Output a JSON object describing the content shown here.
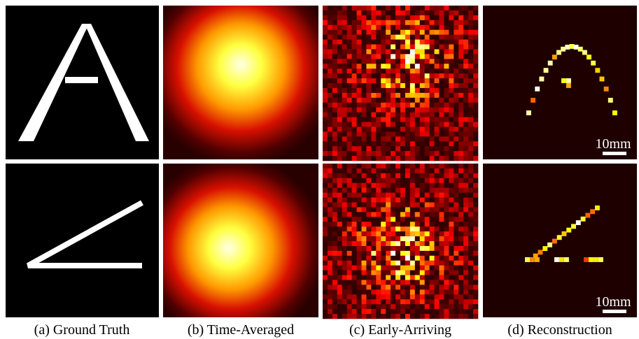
{
  "panels": [
    {
      "caption": "(a) Ground Truth"
    },
    {
      "caption": "(b) Time-Averaged"
    },
    {
      "caption": "(c) Early-Arriving"
    },
    {
      "caption": "(d) Reconstruction"
    }
  ],
  "scale_bars": [
    {
      "label": "10mm"
    },
    {
      "label": "10mm"
    }
  ]
}
